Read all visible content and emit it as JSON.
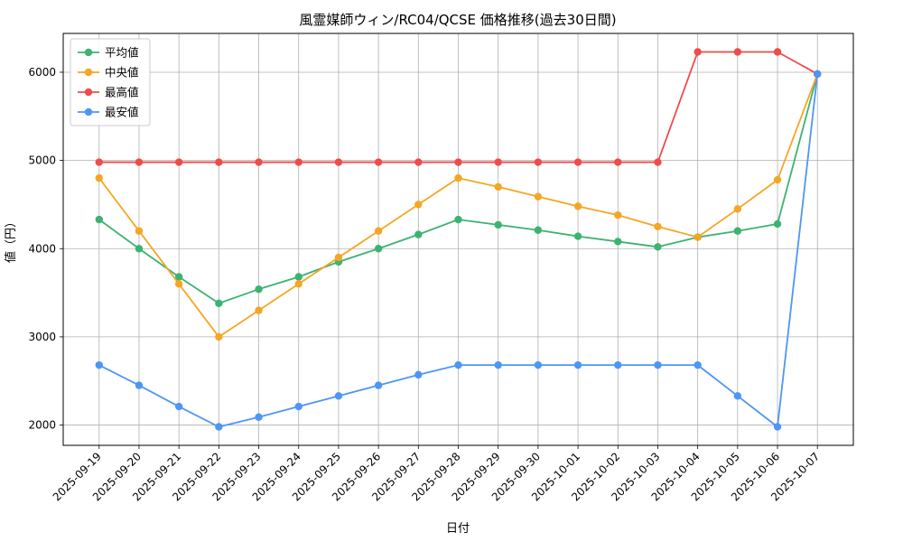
{
  "chart_data": {
    "type": "line",
    "title": "風霊媒師ウィン/RC04/QCSE 価格推移(過去30日間)",
    "xlabel": "日付",
    "ylabel": "値（円）",
    "categories": [
      "2025-09-19",
      "2025-09-20",
      "2025-09-21",
      "2025-09-22",
      "2025-09-23",
      "2025-09-24",
      "2025-09-25",
      "2025-09-26",
      "2025-09-27",
      "2025-09-28",
      "2025-09-29",
      "2025-09-30",
      "2025-10-01",
      "2025-10-02",
      "2025-10-03",
      "2025-10-04",
      "2025-10-05",
      "2025-10-06",
      "2025-10-07"
    ],
    "yticks": [
      2000,
      3000,
      4000,
      5000,
      6000
    ],
    "ylim": [
      1770,
      6440
    ],
    "grid": true,
    "legend_position": "upper-left",
    "series": [
      {
        "key": "average",
        "name": "平均値",
        "color": "#3cb371",
        "values": [
          4330,
          4000,
          3680,
          3380,
          3540,
          3680,
          3850,
          4000,
          4160,
          4330,
          4270,
          4210,
          4140,
          4080,
          4020,
          4130,
          4200,
          4280,
          5980
        ]
      },
      {
        "key": "median",
        "name": "中央値",
        "color": "#f5a623",
        "values": [
          4800,
          4200,
          3600,
          3000,
          3300,
          3600,
          3900,
          4200,
          4500,
          4800,
          4700,
          4590,
          4480,
          4380,
          4250,
          4130,
          4450,
          4780,
          5980
        ]
      },
      {
        "key": "max",
        "name": "最高値",
        "color": "#f04b4b",
        "values": [
          4980,
          4980,
          4980,
          4980,
          4980,
          4980,
          4980,
          4980,
          4980,
          4980,
          4980,
          4980,
          4980,
          4980,
          4980,
          6230,
          6230,
          6230,
          5980
        ]
      },
      {
        "key": "min",
        "name": "最安値",
        "color": "#4d96f5",
        "values": [
          2680,
          2450,
          2210,
          1980,
          2090,
          2210,
          2330,
          2450,
          2570,
          2680,
          2680,
          2680,
          2680,
          2680,
          2680,
          2680,
          2330,
          1980,
          5980
        ]
      }
    ]
  }
}
